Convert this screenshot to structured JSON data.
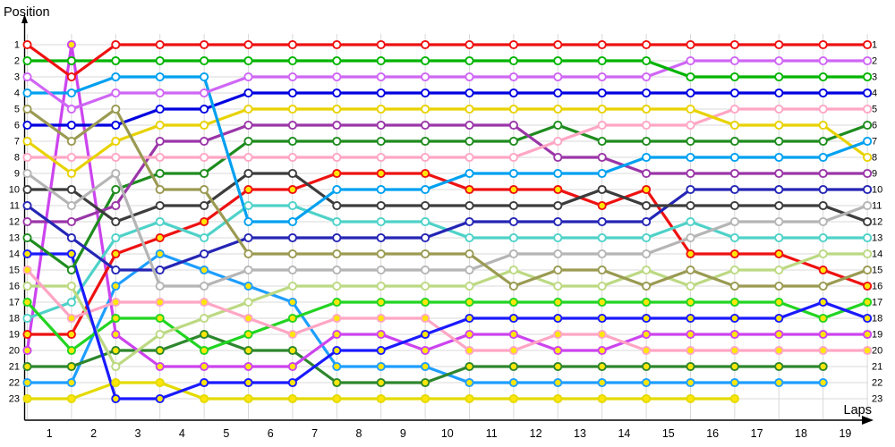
{
  "chart_data": {
    "type": "line",
    "title": "Position",
    "xlabel": "Laps",
    "x_tick_labels": [
      "1",
      "2",
      "3",
      "4",
      "5",
      "6",
      "7",
      "8",
      "9",
      "10",
      "11",
      "12",
      "13",
      "14",
      "15",
      "16",
      "17",
      "18",
      "19"
    ],
    "position_labels_left": [
      "1",
      "2",
      "3",
      "4",
      "5",
      "6",
      "7",
      "8",
      "9",
      "10",
      "11",
      "12",
      "13",
      "14",
      "15",
      "16",
      "17",
      "18",
      "19",
      "20",
      "21",
      "22",
      "23"
    ],
    "position_labels_right": [
      "1",
      "2",
      "3",
      "4",
      "5",
      "6",
      "7",
      "8",
      "9",
      "10",
      "11",
      "12",
      "13",
      "14",
      "15",
      "16",
      "17",
      "18",
      "19",
      "20",
      "21",
      "22",
      "23"
    ],
    "ylim": [
      1,
      23
    ],
    "points_per_series": 20,
    "grid": true,
    "grid_color": "#d9d9d9",
    "axis_color": "#000000",
    "marker_fill_default": "#ffffff",
    "marker_fill_class2": "#ffe60a",
    "series": [
      {
        "name": "red",
        "start_pos": 1,
        "color": "#ee1111",
        "marker": "#ffffff",
        "positions": [
          1,
          3,
          1,
          1,
          1,
          1,
          1,
          1,
          1,
          1,
          1,
          1,
          1,
          1,
          1,
          1,
          1,
          1,
          1,
          1
        ]
      },
      {
        "name": "green",
        "start_pos": 2,
        "color": "#00b400",
        "marker": "#ffffff",
        "positions": [
          2,
          2,
          2,
          2,
          2,
          2,
          2,
          2,
          2,
          2,
          2,
          2,
          2,
          2,
          2,
          3,
          3,
          3,
          3,
          3
        ]
      },
      {
        "name": "violet",
        "start_pos": 3,
        "color": "#cf66f5",
        "marker": "#ffffff",
        "positions": [
          3,
          5,
          4,
          4,
          4,
          3,
          3,
          3,
          3,
          3,
          3,
          3,
          3,
          3,
          3,
          2,
          2,
          2,
          2,
          2
        ]
      },
      {
        "name": "sky-blue",
        "start_pos": 4,
        "color": "#00a0f0",
        "marker": "#ffffff",
        "positions": [
          4,
          4,
          3,
          3,
          3,
          12,
          12,
          10,
          10,
          10,
          9,
          9,
          9,
          9,
          8,
          8,
          8,
          8,
          8,
          7
        ]
      },
      {
        "name": "khaki",
        "start_pos": 5,
        "color": "#9a9a52",
        "marker": "#ffffff",
        "positions": [
          5,
          7,
          5,
          10,
          10,
          14,
          14,
          14,
          14,
          14,
          14,
          16,
          15,
          15,
          16,
          15,
          16,
          16,
          16,
          15
        ]
      },
      {
        "name": "blue",
        "start_pos": 6,
        "color": "#0000e0",
        "marker": "#ffffff",
        "positions": [
          6,
          6,
          6,
          5,
          5,
          4,
          4,
          4,
          4,
          4,
          4,
          4,
          4,
          4,
          4,
          4,
          4,
          4,
          4,
          4
        ]
      },
      {
        "name": "yellow",
        "start_pos": 7,
        "color": "#e8d200",
        "marker": "#ffffff",
        "positions": [
          7,
          9,
          7,
          6,
          6,
          5,
          5,
          5,
          5,
          5,
          5,
          5,
          5,
          5,
          5,
          5,
          6,
          6,
          6,
          8
        ]
      },
      {
        "name": "pink",
        "start_pos": 8,
        "color": "#ffa6c4",
        "marker": "#ffffff",
        "positions": [
          8,
          8,
          8,
          8,
          8,
          8,
          8,
          8,
          8,
          8,
          8,
          8,
          7,
          6,
          6,
          6,
          5,
          5,
          5,
          5
        ]
      },
      {
        "name": "silver",
        "start_pos": 9,
        "color": "#b5b5b5",
        "marker": "#ffffff",
        "positions": [
          9,
          11,
          9,
          16,
          16,
          15,
          15,
          15,
          15,
          15,
          15,
          14,
          14,
          14,
          14,
          13,
          12,
          12,
          12,
          11
        ]
      },
      {
        "name": "dark-gray",
        "start_pos": 10,
        "color": "#3c3c3c",
        "marker": "#ffffff",
        "positions": [
          10,
          10,
          12,
          11,
          11,
          9,
          9,
          11,
          11,
          11,
          11,
          11,
          11,
          10,
          11,
          11,
          11,
          11,
          11,
          12
        ]
      },
      {
        "name": "navy",
        "start_pos": 11,
        "color": "#2525b5",
        "marker": "#ffffff",
        "positions": [
          11,
          13,
          15,
          15,
          14,
          13,
          13,
          13,
          13,
          13,
          12,
          12,
          12,
          12,
          12,
          10,
          10,
          10,
          10,
          10
        ]
      },
      {
        "name": "purple",
        "start_pos": 12,
        "color": "#9a36a8",
        "marker": "#ffffff",
        "positions": [
          12,
          12,
          11,
          7,
          7,
          6,
          6,
          6,
          6,
          6,
          6,
          6,
          8,
          8,
          9,
          9,
          9,
          9,
          9,
          9
        ]
      },
      {
        "name": "sea-green",
        "start_pos": 13,
        "color": "#1e8c1e",
        "marker": "#ffffff",
        "positions": [
          13,
          15,
          10,
          9,
          9,
          7,
          7,
          7,
          7,
          7,
          7,
          7,
          6,
          7,
          7,
          7,
          7,
          7,
          7,
          6
        ]
      },
      {
        "name": "royal-blue",
        "start_pos": 14,
        "color": "#1a1aff",
        "marker": "#ffe60a",
        "positions": [
          14,
          14,
          23,
          23,
          22,
          22,
          22,
          20,
          20,
          19,
          18,
          18,
          18,
          18,
          18,
          18,
          18,
          18,
          17,
          18
        ]
      },
      {
        "name": "rose",
        "start_pos": 15,
        "color": "#ffa6c4",
        "marker": "#ffe60a",
        "positions": [
          15,
          18,
          17,
          17,
          17,
          18,
          19,
          18,
          18,
          18,
          20,
          20,
          19,
          19,
          20,
          20,
          20,
          20,
          20,
          20
        ]
      },
      {
        "name": "pale-green",
        "start_pos": 16,
        "color": "#bcd982",
        "marker": "#ffffff",
        "positions": [
          16,
          16,
          21,
          19,
          18,
          17,
          16,
          16,
          16,
          16,
          16,
          15,
          16,
          16,
          15,
          16,
          15,
          15,
          14,
          14
        ]
      },
      {
        "name": "lime",
        "start_pos": 17,
        "color": "#22d422",
        "marker": "#ffe60a",
        "positions": [
          17,
          20,
          18,
          18,
          20,
          19,
          18,
          17,
          17,
          17,
          17,
          17,
          17,
          17,
          17,
          17,
          17,
          17,
          18,
          17
        ]
      },
      {
        "name": "turquoise",
        "start_pos": 18,
        "color": "#4fd2c8",
        "marker": "#ffffff",
        "positions": [
          18,
          17,
          13,
          12,
          13,
          11,
          11,
          12,
          12,
          12,
          13,
          13,
          13,
          13,
          13,
          12,
          13,
          13,
          13,
          13
        ]
      },
      {
        "name": "crimson",
        "start_pos": 19,
        "color": "#ee1111",
        "marker": "#ffe60a",
        "positions": [
          19,
          19,
          14,
          13,
          12,
          10,
          10,
          9,
          9,
          9,
          10,
          10,
          10,
          11,
          10,
          14,
          14,
          14,
          15,
          16
        ]
      },
      {
        "name": "magenta",
        "start_pos": 20,
        "color": "#cc44ee",
        "marker": "#ffe60a",
        "positions": [
          20,
          1,
          19,
          21,
          21,
          21,
          21,
          19,
          19,
          20,
          19,
          19,
          20,
          20,
          19,
          19,
          19,
          19,
          19,
          19
        ]
      },
      {
        "name": "forest",
        "start_pos": 21,
        "color": "#2d862d",
        "marker": "#ffe60a",
        "positions": [
          21,
          21,
          20,
          20,
          19,
          20,
          20,
          22,
          22,
          22,
          21,
          21,
          21,
          21,
          21,
          21,
          21,
          21,
          21,
          null
        ]
      },
      {
        "name": "azure",
        "start_pos": 22,
        "color": "#1e9eff",
        "marker": "#ffe60a",
        "positions": [
          22,
          22,
          16,
          14,
          15,
          16,
          17,
          21,
          21,
          21,
          22,
          22,
          22,
          22,
          22,
          22,
          22,
          22,
          22,
          null
        ]
      },
      {
        "name": "gold",
        "start_pos": 23,
        "color": "#e3da00",
        "marker": "#ffe60a",
        "positions": [
          23,
          23,
          22,
          22,
          23,
          23,
          23,
          23,
          23,
          23,
          23,
          23,
          23,
          23,
          23,
          23,
          23,
          null,
          null,
          null
        ]
      }
    ]
  }
}
